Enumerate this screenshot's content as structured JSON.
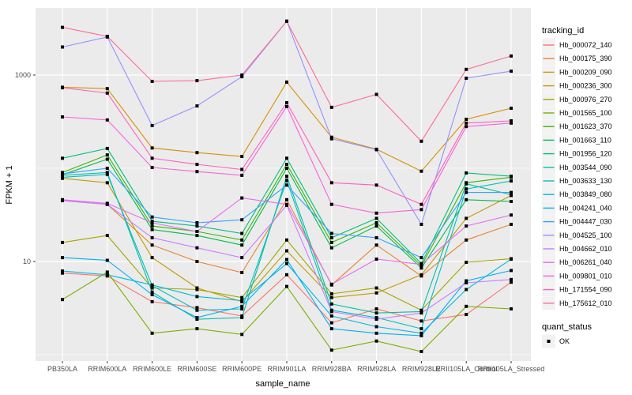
{
  "figure": {
    "axes": {
      "y_title": "FPKM + 1",
      "x_title": "sample_name"
    },
    "legend": {
      "tracking_title": "tracking_id",
      "quant_title": "quant_status",
      "quant_ok_label": "OK",
      "quant_ok_color": "#000000",
      "key_box_color": "#f2f2f2"
    }
  },
  "chart_data": {
    "type": "line",
    "title": "",
    "xlabel": "sample_name",
    "ylabel": "FPKM + 1",
    "y_scale": "log10",
    "ylim": [
      0.855,
      5250
    ],
    "y_ticks": [
      {
        "label": "10",
        "value": 10
      },
      {
        "label": "1000",
        "value": 1000
      }
    ],
    "y_minor_gridlines": [
      1,
      100
    ],
    "y_major_gridlines": [
      10,
      1000
    ],
    "grid": true,
    "legend_position": "right",
    "panel_bg": "#ebebeb",
    "gridline_color": "#ffffff",
    "marker": {
      "shape": "square",
      "color": "#000000",
      "size": 4
    },
    "categories": [
      "PB350LA",
      "RRIM600LA",
      "RRIM600LE",
      "RRIM600SE",
      "RRIM600PE",
      "RRIM901LA",
      "RRIM928BA",
      "RRIM928LA",
      "RRIM928LE",
      "RRII105LA_Control",
      "RRII105LA_Stressed"
    ],
    "series": [
      {
        "name": "Hb_000072_140",
        "color": "#F8766D",
        "values": [
          7.5,
          7.0,
          3.7,
          3.2,
          2.6,
          7.2,
          2.2,
          3.1,
          2.3,
          2.7,
          6.0
        ]
      },
      {
        "name": "Hb_000175_390",
        "color": "#EA8331",
        "values": [
          45,
          41,
          15,
          10,
          7.6,
          46,
          5.6,
          15,
          7.0,
          17,
          25
        ]
      },
      {
        "name": "Hb_000209_090",
        "color": "#D89000",
        "values": [
          740,
          715,
          165,
          147,
          134,
          840,
          215,
          160,
          93,
          335,
          440
        ]
      },
      {
        "name": "Hb_000236_300",
        "color": "#C09B00",
        "values": [
          78,
          70,
          11,
          5.2,
          3.7,
          13,
          4.1,
          4.6,
          7.2,
          29,
          51
        ]
      },
      {
        "name": "Hb_000976_270",
        "color": "#A3A500",
        "values": [
          16,
          19,
          5.2,
          5.0,
          4.1,
          17,
          4.5,
          5.2,
          3.0,
          9.8,
          10.7
        ]
      },
      {
        "name": "Hb_001565_100",
        "color": "#7CAE00",
        "values": [
          3.9,
          7.7,
          1.7,
          1.9,
          1.65,
          5.4,
          1.12,
          1.4,
          1.08,
          3.3,
          3.1
        ]
      },
      {
        "name": "Hb_001623_370",
        "color": "#39B600",
        "values": [
          90,
          139,
          24,
          21,
          17,
          110,
          16,
          26,
          9.0,
          70,
          80
        ]
      },
      {
        "name": "Hb_001663_110",
        "color": "#00BB4E",
        "values": [
          85,
          125,
          22,
          19,
          15,
          100,
          14,
          24,
          8.5,
          46,
          44
        ]
      },
      {
        "name": "Hb_001956_120",
        "color": "#00BF7D",
        "values": [
          128,
          163,
          27,
          24,
          20,
          128,
          18,
          29,
          9.5,
          89,
          82
        ]
      },
      {
        "name": "Hb_003544_090",
        "color": "#00C1A3",
        "values": [
          84,
          90,
          4.7,
          2.4,
          2.5,
          82,
          3.5,
          2.8,
          2.9,
          68,
          52
        ]
      },
      {
        "name": "Hb_003633_130",
        "color": "#00BFC4",
        "values": [
          80,
          86,
          5.5,
          3.0,
          3.1,
          74,
          3.0,
          2.5,
          1.9,
          60,
          73
        ]
      },
      {
        "name": "Hb_003849_080",
        "color": "#00BAE0",
        "values": [
          7.9,
          7.2,
          5.6,
          4.2,
          3.8,
          9.5,
          2.6,
          2.0,
          1.7,
          5.0,
          10.6
        ]
      },
      {
        "name": "Hb_004241_040",
        "color": "#00B0F6",
        "values": [
          11,
          10.3,
          4.4,
          2.5,
          3.3,
          10.5,
          1.9,
          1.7,
          1.6,
          6.2,
          8.0
        ]
      },
      {
        "name": "Hb_004447_030",
        "color": "#35A2FF",
        "values": [
          87,
          100,
          30,
          26,
          28,
          66,
          20,
          18,
          11,
          55,
          55
        ]
      },
      {
        "name": "Hb_004525_100",
        "color": "#9590FF",
        "values": [
          2000,
          2560,
          287,
          466,
          960,
          3780,
          207,
          158,
          25,
          925,
          1100
        ]
      },
      {
        "name": "Hb_004662_010",
        "color": "#C77CFF",
        "values": [
          45,
          41,
          18,
          14,
          11,
          40,
          2.9,
          2.4,
          2.8,
          5.9,
          6.4
        ]
      },
      {
        "name": "Hb_006261_040",
        "color": "#E76BF3",
        "values": [
          46,
          42,
          26,
          21,
          48,
          41,
          5.7,
          10.6,
          9.3,
          24,
          31.5
        ]
      },
      {
        "name": "Hb_009801_010",
        "color": "#FA62DB",
        "values": [
          355,
          330,
          102,
          92,
          84,
          460,
          41,
          33,
          36,
          280,
          305
        ]
      },
      {
        "name": "Hb_171554_090",
        "color": "#FF62BC",
        "values": [
          730,
          640,
          128,
          110,
          97,
          505,
          70,
          66,
          41,
          305,
          322
        ]
      },
      {
        "name": "Hb_175612_010",
        "color": "#FF6A98",
        "values": [
          3250,
          2600,
          855,
          870,
          1000,
          3780,
          450,
          620,
          195,
          1150,
          1600
        ]
      }
    ]
  }
}
